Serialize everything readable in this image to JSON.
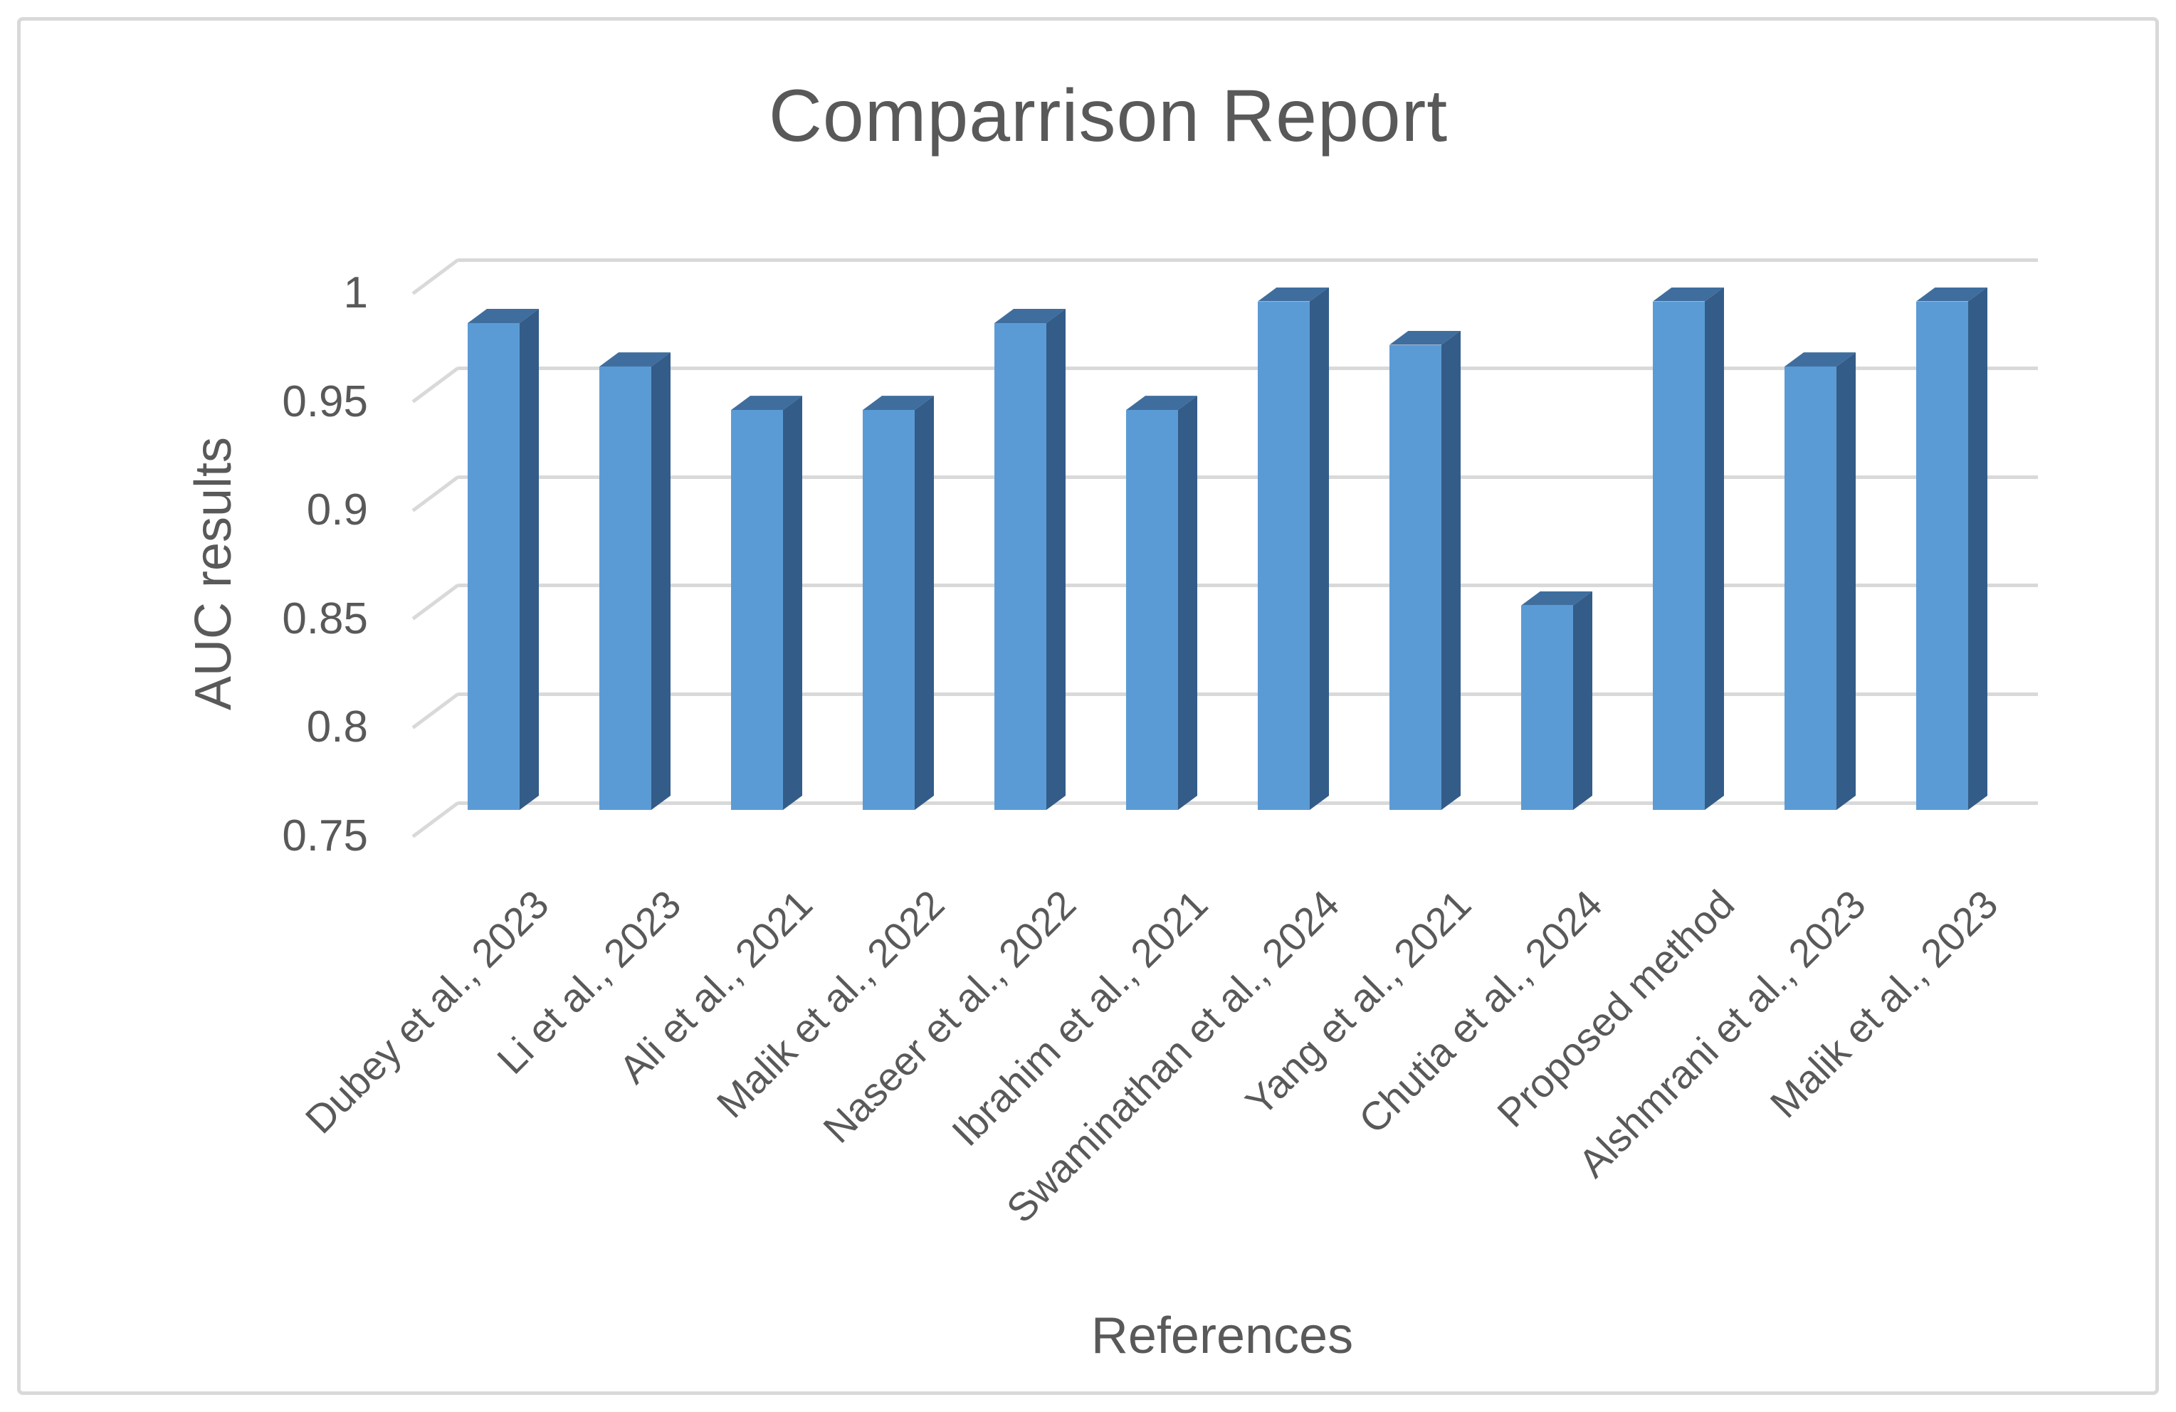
{
  "title": "Comparrison Report",
  "axes": {
    "y_title": "AUC results",
    "x_title": "References",
    "y_ticks": [
      "1",
      "0.95",
      "0.9",
      "0.85",
      "0.8",
      "0.75"
    ]
  },
  "chart_data": {
    "type": "bar",
    "style": "3d-column",
    "title": "Comparrison Report",
    "xlabel": "References",
    "ylabel": "AUC results",
    "ylim": [
      0.75,
      1.0
    ],
    "ytick_step": 0.05,
    "grid": true,
    "legend": "none",
    "categories": [
      "Dubey et al., 2023",
      "Li et al., 2023",
      "Ali et al., 2021",
      "Malik et al., 2022",
      "Naseer et al., 2022",
      "Ibrahim et al., 2021",
      "Swaminathan et al., 2024",
      "Yang et al., 2021",
      "Chutia et al., 2024",
      "Proposed method",
      "Alshmrani et al., 2023",
      "Malik et al., 2023"
    ],
    "values": [
      0.98,
      0.96,
      0.94,
      0.94,
      0.98,
      0.94,
      0.99,
      0.97,
      0.85,
      0.99,
      0.96,
      0.99
    ],
    "colors": {
      "bar_front": "#5b9bd5",
      "bar_top": "#3f6e9e",
      "bar_side": "#345c88",
      "gridline": "#d9d9d9",
      "text": "#595959",
      "frame_border": "#d9d9d9"
    }
  }
}
